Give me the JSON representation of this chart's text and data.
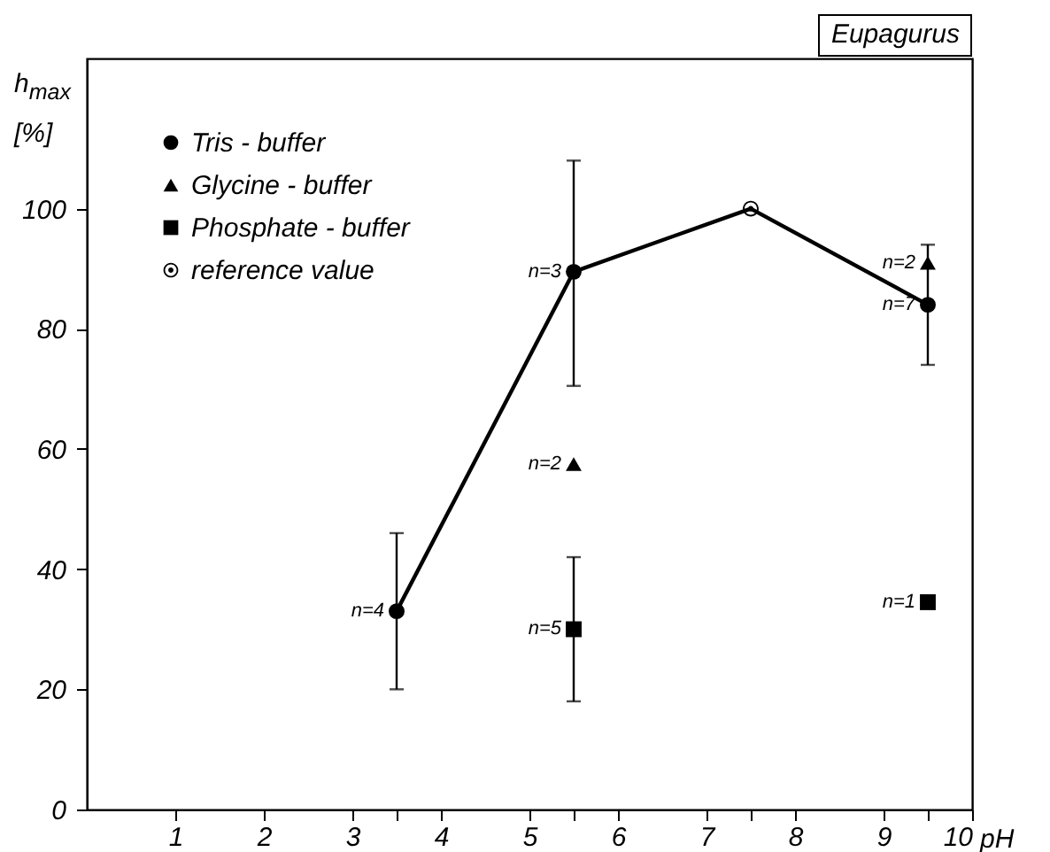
{
  "chart_data": {
    "type": "scatter",
    "title": "Eupagurus",
    "xlabel": "pH",
    "ylabel": "h$_{max}$ [%]",
    "xlim": [
      0,
      10
    ],
    "ylim": [
      0,
      125
    ],
    "xticks": [
      1,
      2,
      3,
      {
        "value": 3.5,
        "label": null
      },
      4,
      5,
      {
        "value": 5.5,
        "label": null
      },
      6,
      7,
      {
        "value": 7.5,
        "label": null
      },
      8,
      9,
      {
        "value": 9.5,
        "label": null
      },
      10
    ],
    "yticks": [
      0,
      20,
      40,
      60,
      80,
      100
    ],
    "grid": false,
    "legend": "top left",
    "series": [
      {
        "type": "line",
        "color": "#000000",
        "marker": "none",
        "x": [
          3.5,
          5.5,
          7.5,
          9.5
        ],
        "values": [
          33,
          89.5,
          100,
          84
        ]
      },
      {
        "name": "Tris - buffer",
        "color": "#000000",
        "marker": "circle",
        "x": [
          3.5,
          5.5,
          9.5
        ],
        "values": [
          33,
          89.5,
          84
        ],
        "errors": [
          [
            20,
            46
          ],
          [
            70.5,
            108
          ],
          [
            74,
            94
          ]
        ]
      },
      {
        "name": "Glycine - buffer",
        "color": "#000000",
        "marker": "triangle",
        "x": [
          5.5,
          9.5
        ],
        "values": [
          57.5,
          91
        ]
      },
      {
        "name": "Phosphate - buffer",
        "color": "#000000",
        "marker": "square",
        "x": [
          5.5,
          9.5
        ],
        "values": [
          30,
          34.5
        ],
        "errors": [
          [
            18,
            42
          ],
          null
        ]
      },
      {
        "name": "reference value",
        "color": "#000000",
        "marker": "circle-dot",
        "x": [
          7.5
        ],
        "values": [
          100
        ]
      }
    ],
    "annotations": [
      {
        "text": "n=4",
        "x": 3.5,
        "y": 33
      },
      {
        "text": "n=3",
        "x": 5.5,
        "y": 89.5
      },
      {
        "text": "n=2",
        "x": 5.5,
        "y": 57.5
      },
      {
        "text": "n=5",
        "x": 5.5,
        "y": 30
      },
      {
        "text": "n=2",
        "x": 9.5,
        "y": 91
      },
      {
        "text": "n=7",
        "x": 9.5,
        "y": 84
      },
      {
        "text": "n=1",
        "x": 9.5,
        "y": 34.5
      }
    ]
  }
}
